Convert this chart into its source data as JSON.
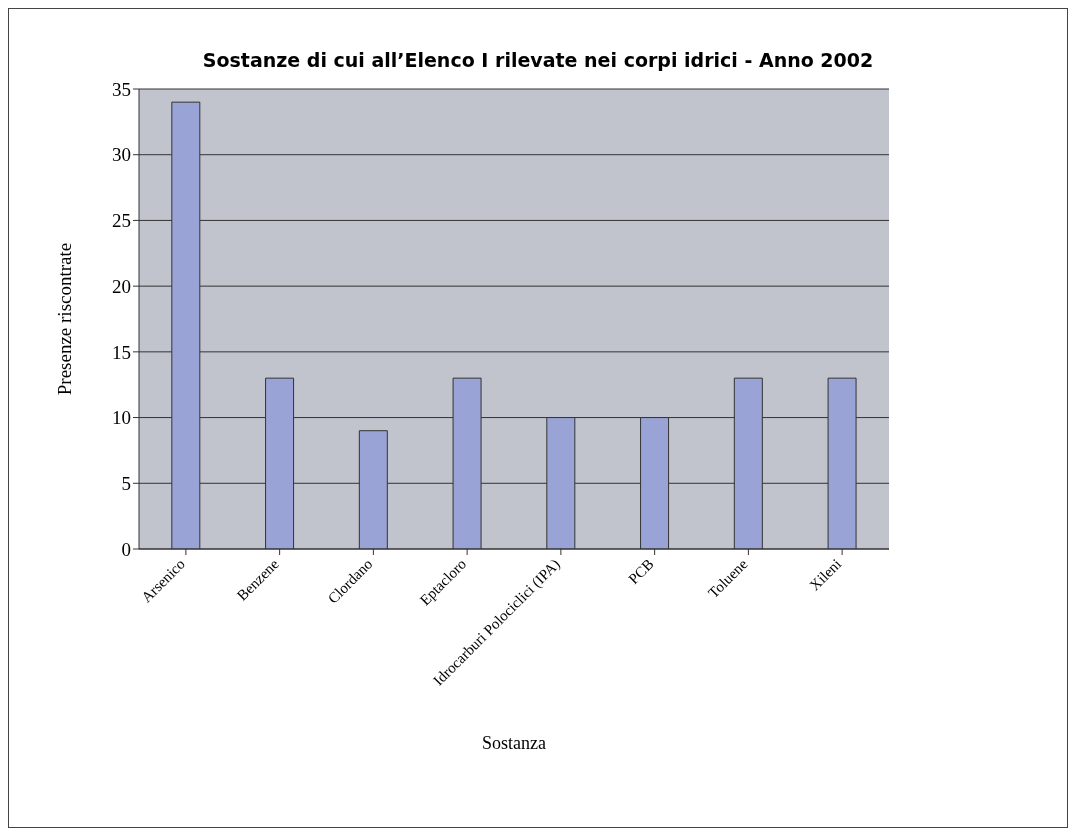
{
  "chart_data": {
    "type": "bar",
    "title": "Sostanze di cui all’Elenco I rilevate nei corpi idrici - Anno 2002",
    "xlabel": "Sostanza",
    "ylabel": "Presenze riscontrate",
    "categories": [
      "Arsenico",
      "Benzene",
      "Clordano",
      "Eptacloro",
      "Idrocarburi Polociclici (IPA)",
      "PCB",
      "Toluene",
      "Xileni"
    ],
    "values": [
      34,
      13,
      9,
      13,
      10,
      10,
      13,
      13
    ],
    "color": "#9aa3d6",
    "ylim": [
      0,
      35
    ],
    "yticks": [
      0,
      5,
      10,
      15,
      20,
      25,
      30,
      35
    ],
    "grid": "y",
    "legend": false
  }
}
